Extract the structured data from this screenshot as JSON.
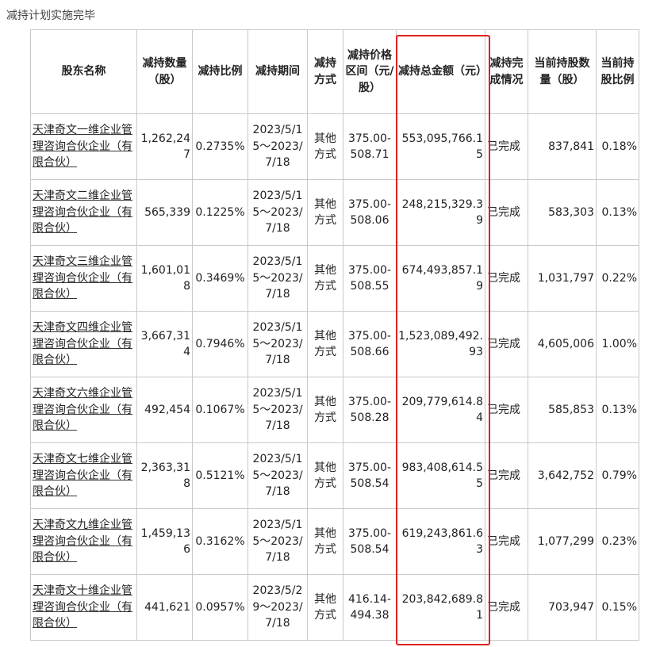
{
  "title": "减持计划实施完毕",
  "headers": {
    "holder": "股东名称",
    "qty": "减持数量（股）",
    "ratio": "减持比例",
    "period": "减持期间",
    "method": "减持方式",
    "price": "减持价格区间（元/股）",
    "amount": "减持总金额（元）",
    "status": "减持完成情况",
    "cur_qty": "当前持股数量（股）",
    "cur_ratio": "当前持股比例"
  },
  "rows": [
    {
      "holder": "天津奇文一维企业管理咨询合伙企业（有限合伙）",
      "qty": "1,262,247",
      "ratio": "0.2735%",
      "period": "2023/5/15～2023/7/18",
      "method": "其他方式",
      "price": "375.00-508.71",
      "amount": "553,095,766.15",
      "status": "已完成",
      "cur_qty": "837,841",
      "cur_ratio": "0.18%"
    },
    {
      "holder": "天津奇文二维企业管理咨询合伙企业（有限合伙）",
      "qty": "565,339",
      "ratio": "0.1225%",
      "period": "2023/5/15～2023/7/18",
      "method": "其他方式",
      "price": "375.00-508.06",
      "amount": "248,215,329.39",
      "status": "已完成",
      "cur_qty": "583,303",
      "cur_ratio": "0.13%"
    },
    {
      "holder": "天津奇文三维企业管理咨询合伙企业（有限合伙）",
      "qty": "1,601,018",
      "ratio": "0.3469%",
      "period": "2023/5/15～2023/7/18",
      "method": "其他方式",
      "price": "375.00-508.55",
      "amount": "674,493,857.19",
      "status": "已完成",
      "cur_qty": "1,031,797",
      "cur_ratio": "0.22%"
    },
    {
      "holder": "天津奇文四维企业管理咨询合伙企业（有限合伙）",
      "qty": "3,667,314",
      "ratio": "0.7946%",
      "period": "2023/5/15～2023/7/18",
      "method": "其他方式",
      "price": "375.00-508.66",
      "amount": "1,523,089,492.93",
      "status": "已完成",
      "cur_qty": "4,605,006",
      "cur_ratio": "1.00%"
    },
    {
      "holder": "天津奇文六维企业管理咨询合伙企业（有限合伙）",
      "qty": "492,454",
      "ratio": "0.1067%",
      "period": "2023/5/15～2023/7/18",
      "method": "其他方式",
      "price": "375.00-508.28",
      "amount": "209,779,614.84",
      "status": "已完成",
      "cur_qty": "585,853",
      "cur_ratio": "0.13%"
    },
    {
      "holder": "天津奇文七维企业管理咨询合伙企业（有限合伙）",
      "qty": "2,363,318",
      "ratio": "0.5121%",
      "period": "2023/5/15～2023/7/18",
      "method": "其他方式",
      "price": "375.00-508.54",
      "amount": "983,408,614.55",
      "status": "已完成",
      "cur_qty": "3,642,752",
      "cur_ratio": "0.79%"
    },
    {
      "holder": "天津奇文九维企业管理咨询合伙企业（有限合伙）",
      "qty": "1,459,136",
      "ratio": "0.3162%",
      "period": "2023/5/15～2023/7/18",
      "method": "其他方式",
      "price": "375.00-508.54",
      "amount": "619,243,861.63",
      "status": "已完成",
      "cur_qty": "1,077,299",
      "cur_ratio": "0.23%"
    },
    {
      "holder": "天津奇文十维企业管理咨询合伙企业（有限合伙）",
      "qty": "441,621",
      "ratio": "0.0957%",
      "period": "2023/5/29～2023/7/18",
      "method": "其他方式",
      "price": "416.14-494.38",
      "amount": "203,842,689.81",
      "status": "已完成",
      "cur_qty": "703,947",
      "cur_ratio": "0.15%"
    }
  ],
  "colors": {
    "highlight_border": "#e0201e",
    "grid": "#c9c9c9"
  }
}
